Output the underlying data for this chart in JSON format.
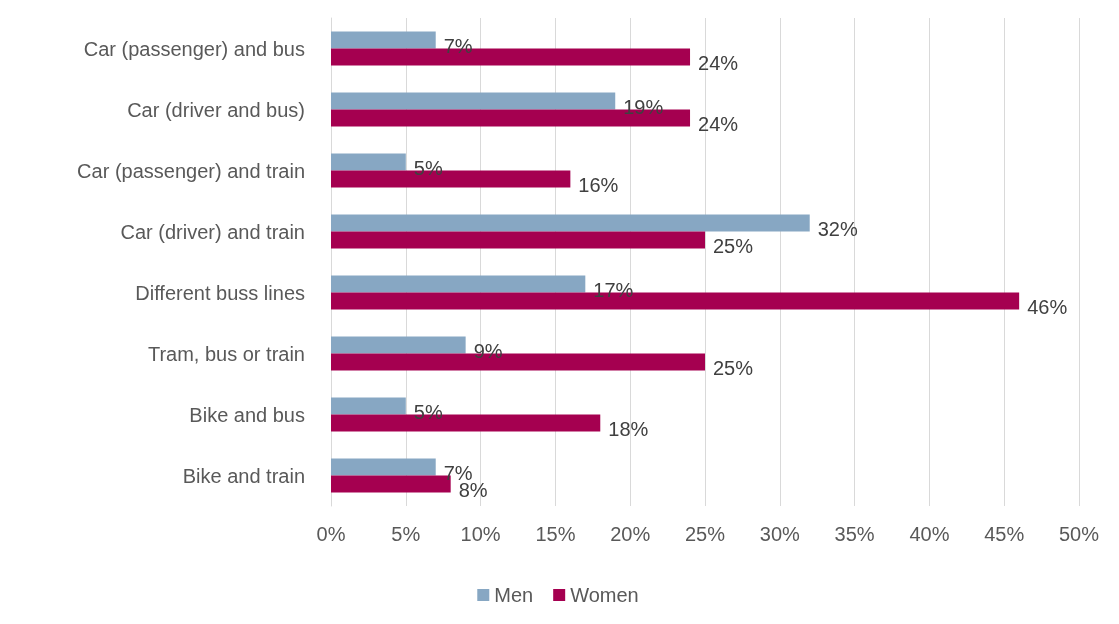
{
  "chart_data": {
    "type": "bar",
    "orientation": "horizontal",
    "categories": [
      "Car (passenger) and bus",
      "Car (driver and bus)",
      "Car (passenger) and train",
      "Car (driver) and train",
      "Different buss lines",
      "Tram, bus or train",
      "Bike and bus",
      "Bike and train"
    ],
    "series": [
      {
        "name": "Men",
        "color": "#87a7c3",
        "values": [
          7,
          19,
          5,
          32,
          17,
          9,
          5,
          7
        ],
        "value_labels": [
          "7%",
          "19%",
          "5%",
          "32%",
          "17%",
          "9%",
          "5%",
          "7%"
        ]
      },
      {
        "name": "Women",
        "color": "#a50050",
        "values": [
          24,
          24,
          16,
          25,
          46,
          25,
          18,
          8
        ],
        "value_labels": [
          "24%",
          "24%",
          "16%",
          "25%",
          "46%",
          "25%",
          "18%",
          "8%"
        ]
      }
    ],
    "xlim": [
      0,
      50
    ],
    "xticks": [
      {
        "value": 0,
        "label": "0%"
      },
      {
        "value": 5,
        "label": "5%"
      },
      {
        "value": 10,
        "label": "10%"
      },
      {
        "value": 15,
        "label": "15%"
      },
      {
        "value": 20,
        "label": "20%"
      },
      {
        "value": 25,
        "label": "25%"
      },
      {
        "value": 30,
        "label": "30%"
      },
      {
        "value": 35,
        "label": "35%"
      },
      {
        "value": 40,
        "label": "40%"
      },
      {
        "value": 45,
        "label": "45%"
      },
      {
        "value": 50,
        "label": "50%"
      }
    ],
    "grid": "x",
    "legend": "bottom"
  }
}
